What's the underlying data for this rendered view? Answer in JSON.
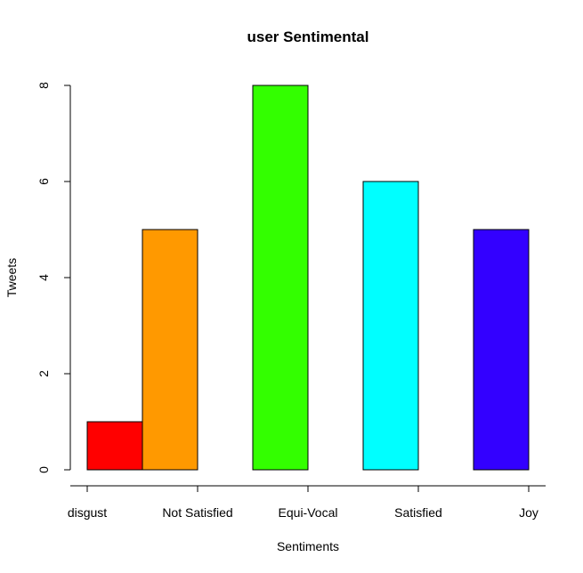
{
  "chart_data": {
    "type": "bar",
    "title": "user Sentimental",
    "xlabel": "Sentiments",
    "ylabel": "Tweets",
    "categories": [
      "disgust",
      "Not Satisfied",
      "Equi-Vocal",
      "Satisfied",
      "Joy"
    ],
    "values": [
      1,
      5,
      8,
      6,
      5
    ],
    "colors": [
      "#ff0000",
      "#ff9900",
      "#33ff00",
      "#00ffff",
      "#3300ff"
    ],
    "bar_outline_color": "#000000",
    "ylim": [
      0,
      8
    ],
    "yticks": [
      0,
      2,
      4,
      6,
      8
    ],
    "grid": false,
    "legend": "none"
  }
}
